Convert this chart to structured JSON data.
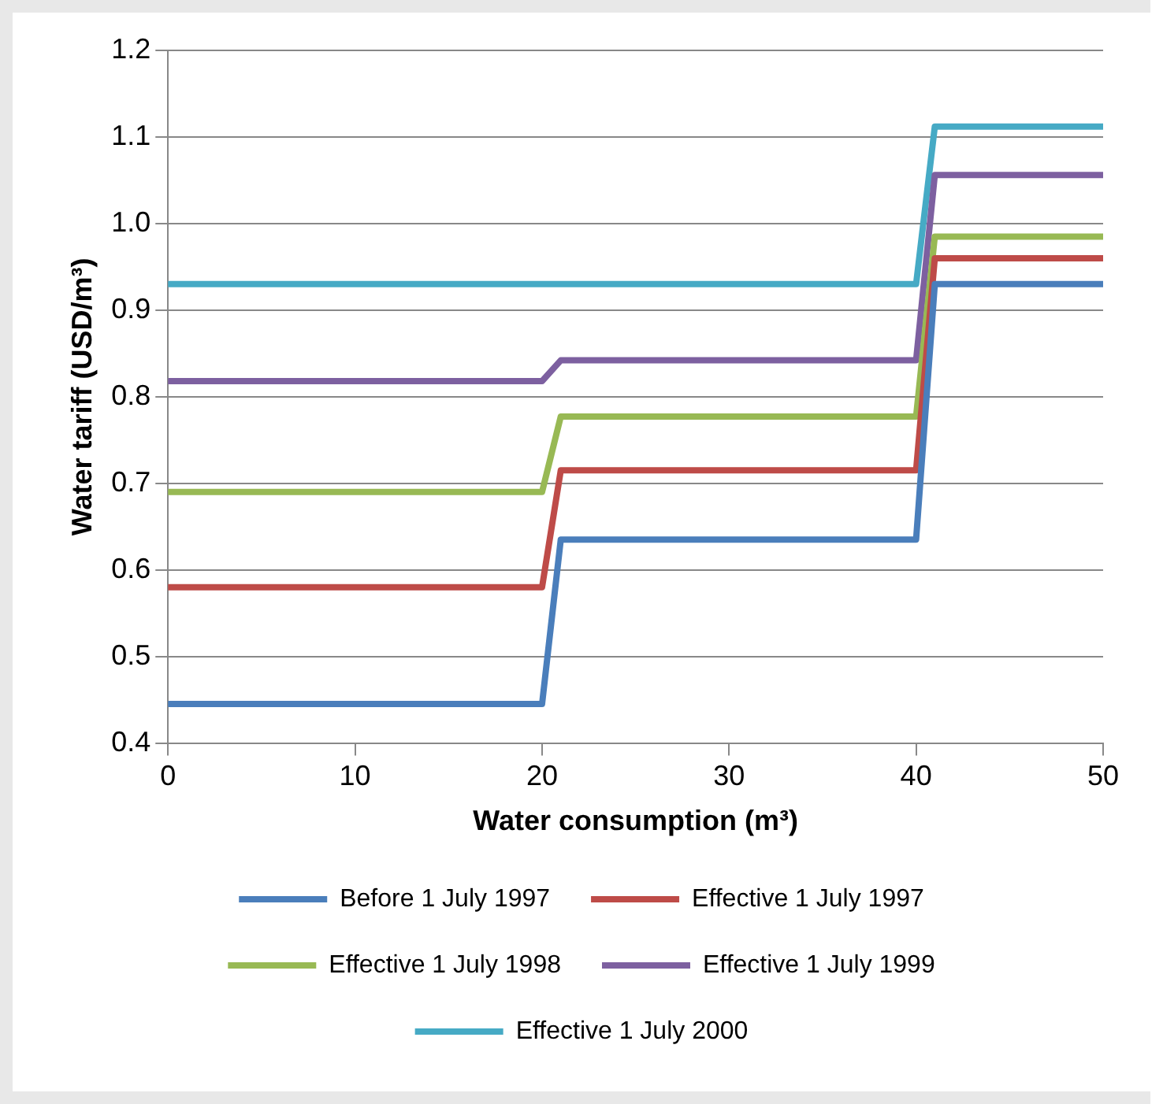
{
  "chart_data": {
    "type": "line",
    "xlabel": "Water consumption (m³)",
    "ylabel": "Water tariff (USD/m³)",
    "xlim": [
      0,
      50
    ],
    "xticks": [
      0,
      10,
      20,
      30,
      40,
      50
    ],
    "ylim": [
      0.4,
      1.2
    ],
    "yticks": [
      {
        "value": 0.4,
        "label": "0.4"
      },
      {
        "value": 0.5,
        "label": "0.5"
      },
      {
        "value": 0.6,
        "label": "0.6"
      },
      {
        "value": 0.7,
        "label": "0.7"
      },
      {
        "value": 0.8,
        "label": "0.8"
      },
      {
        "value": 0.9,
        "label": "0.9"
      },
      {
        "value": 1.0,
        "label": "1.0"
      },
      {
        "value": 1.1,
        "label": "1.1"
      },
      {
        "value": 1.2,
        "label": "1.2"
      }
    ],
    "grid": "y",
    "legend": "bottom",
    "marker": "none",
    "line_style": "solid",
    "series": [
      {
        "name": "Before 1 July 1997",
        "color": "#4a7ebb",
        "x": [
          0,
          20,
          21,
          40,
          41,
          50
        ],
        "values": [
          0.445,
          0.445,
          0.635,
          0.635,
          0.93,
          0.93
        ]
      },
      {
        "name": "Effective 1 July 1997",
        "color": "#be4b48",
        "x": [
          0,
          20,
          21,
          40,
          41,
          50
        ],
        "values": [
          0.58,
          0.58,
          0.715,
          0.715,
          0.96,
          0.96
        ]
      },
      {
        "name": "Effective 1 July 1998",
        "color": "#98b954",
        "x": [
          0,
          20,
          21,
          40,
          41,
          50
        ],
        "values": [
          0.69,
          0.69,
          0.777,
          0.777,
          0.985,
          0.985
        ]
      },
      {
        "name": "Effective 1 July 1999",
        "color": "#7d60a0",
        "x": [
          0,
          20,
          21,
          40,
          41,
          50
        ],
        "values": [
          0.818,
          0.818,
          0.842,
          0.842,
          1.056,
          1.056
        ]
      },
      {
        "name": "Effective 1 July 2000",
        "color": "#46aac5",
        "x": [
          0,
          40,
          41,
          50
        ],
        "values": [
          0.93,
          0.93,
          1.112,
          1.112
        ]
      }
    ]
  }
}
